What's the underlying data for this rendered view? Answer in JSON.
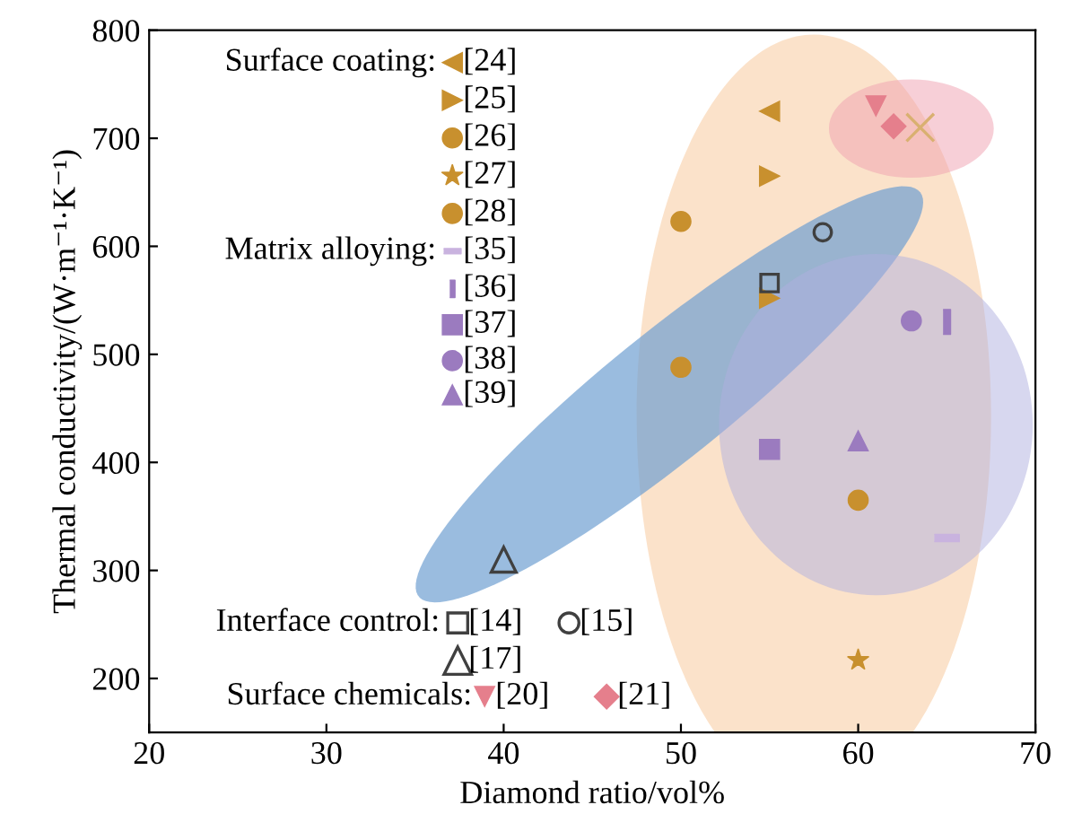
{
  "chart_data": {
    "type": "scatter",
    "xlabel": "Diamond ratio/vol%",
    "ylabel": "Thermal conductivity/(W·m⁻¹·K⁻¹)",
    "xlim": [
      20,
      70
    ],
    "xticks": [
      20,
      30,
      40,
      50,
      60,
      70
    ],
    "ylim": [
      150,
      800
    ],
    "yticks": [
      200,
      300,
      400,
      500,
      600,
      700,
      800
    ],
    "grid": false,
    "legend": "left",
    "annotations": [
      "Surface coating:",
      "Matrix alloying:",
      "Interface control:",
      "Surface chemicals:"
    ],
    "series": [
      {
        "name": "[24]",
        "color": "#c8902e",
        "marker": "triangle_left",
        "x": [
          55
        ],
        "values": [
          725
        ]
      },
      {
        "name": "[25]",
        "color": "#c8902e",
        "marker": "triangle_right",
        "x": [
          55,
          55
        ],
        "values": [
          665,
          552
        ]
      },
      {
        "name": "[26]",
        "color": "#c8902e",
        "marker": "circle",
        "x": [
          50
        ],
        "values": [
          623
        ]
      },
      {
        "name": "[27]",
        "color": "#c8902e",
        "marker": "star",
        "x": [
          60
        ],
        "values": [
          217
        ]
      },
      {
        "name": "[28]",
        "color": "#c8902e",
        "marker": "circle",
        "x": [
          50
        ],
        "values": [
          488
        ]
      },
      {
        "name": "[35]",
        "color": "#c9b3df",
        "x": [
          65
        ],
        "values": [
          330
        ],
        "xerrors": [
          0.5
        ]
      },
      {
        "name": "[36]",
        "color": "#9b7bbf",
        "x": [
          65
        ],
        "values": [
          530
        ],
        "errors": [
          10
        ]
      },
      {
        "name": "[37]",
        "color": "#9b7bbf",
        "marker": "square",
        "x": [
          55
        ],
        "values": [
          412
        ]
      },
      {
        "name": "[38]",
        "color": "#9b7bbf",
        "marker": "circle",
        "x": [
          63
        ],
        "values": [
          531
        ]
      },
      {
        "name": "[39]",
        "color": "#9b7bbf",
        "marker": "triangle",
        "x": [
          60
        ],
        "values": [
          420
        ]
      },
      {
        "name": "[14]",
        "color": "#404040",
        "marker": "square_open",
        "x": [
          55
        ],
        "values": [
          566
        ]
      },
      {
        "name": "[15]",
        "color": "#404040",
        "marker": "circle_open",
        "x": [
          58
        ],
        "values": [
          613
        ]
      },
      {
        "name": "[17]",
        "color": "#404040",
        "marker": "triangle_open",
        "x": [
          40
        ],
        "values": [
          310
        ]
      },
      {
        "name": "[20]",
        "color": "#e57f8c",
        "marker": "triangle_down",
        "x": [
          61
        ],
        "values": [
          730
        ]
      },
      {
        "name": "[21]",
        "color": "#e57f8c",
        "marker": "diamond",
        "x": [
          62
        ],
        "values": [
          711
        ]
      },
      {
        "color": "#d9b070",
        "marker": "cross",
        "x": [
          63.5
        ],
        "values": [
          710
        ]
      },
      {
        "color": "#c8902e",
        "marker": "circle",
        "x": [
          60
        ],
        "values": [
          365
        ]
      }
    ]
  }
}
